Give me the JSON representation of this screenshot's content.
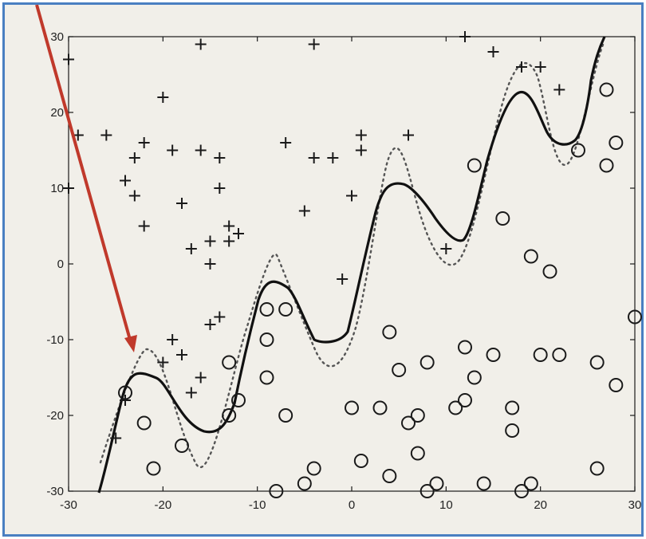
{
  "chart_data": {
    "type": "scatter",
    "title": "",
    "xlabel": "",
    "ylabel": "",
    "xlim": [
      -30,
      30
    ],
    "ylim": [
      -30,
      30
    ],
    "x_ticks": [
      -30,
      -20,
      -10,
      0,
      10,
      20,
      30
    ],
    "y_ticks": [
      -30,
      -20,
      -10,
      0,
      10,
      20,
      30
    ],
    "x_tick_labels": [
      "-30",
      "-20",
      "-10",
      "0",
      "10",
      "20",
      "30"
    ],
    "y_tick_labels": [
      "-30",
      "-20",
      "-10",
      "0",
      "10",
      "20",
      "30"
    ],
    "grid": false,
    "legend": "none",
    "colors": {
      "points": "#1a1a1a",
      "frame": "#4a7fc1",
      "arrow": "#c0392b",
      "background": "#f1efe9"
    },
    "series": [
      {
        "marker": "plus",
        "points": [
          [
            -30,
            27
          ],
          [
            -29,
            17
          ],
          [
            -30,
            10
          ],
          [
            -26,
            17
          ],
          [
            -23,
            14
          ],
          [
            -22,
            16
          ],
          [
            -24,
            11
          ],
          [
            -23,
            9
          ],
          [
            -22,
            5
          ],
          [
            -20,
            22
          ],
          [
            -19,
            15
          ],
          [
            -18,
            8
          ],
          [
            -16,
            15
          ],
          [
            -17,
            2
          ],
          [
            -15,
            3
          ],
          [
            -14,
            14
          ],
          [
            -14,
            10
          ],
          [
            -13,
            3
          ],
          [
            -13,
            5
          ],
          [
            -12,
            4
          ],
          [
            -15,
            0
          ],
          [
            -15,
            -8
          ],
          [
            -14,
            -7
          ],
          [
            -16,
            -15
          ],
          [
            -17,
            -17
          ],
          [
            -18,
            -12
          ],
          [
            -19,
            -10
          ],
          [
            -20,
            -13
          ],
          [
            -24,
            -18
          ],
          [
            -25,
            -23
          ],
          [
            -7,
            16
          ],
          [
            -5,
            7
          ],
          [
            -4,
            29
          ],
          [
            -4,
            14
          ],
          [
            -2,
            14
          ],
          [
            -1,
            -2
          ],
          [
            0,
            9
          ],
          [
            1,
            17
          ],
          [
            1,
            15
          ],
          [
            6,
            17
          ],
          [
            10,
            2
          ],
          [
            12,
            30
          ],
          [
            15,
            28
          ],
          [
            18,
            26
          ],
          [
            20,
            26
          ],
          [
            22,
            23
          ],
          [
            -16,
            29
          ]
        ]
      },
      {
        "marker": "circle",
        "points": [
          [
            -24,
            -17
          ],
          [
            -22,
            -21
          ],
          [
            -21,
            -27
          ],
          [
            -18,
            -24
          ],
          [
            -13,
            -13
          ],
          [
            -12,
            -18
          ],
          [
            -13,
            -20
          ],
          [
            -9,
            -6
          ],
          [
            -9,
            -10
          ],
          [
            -9,
            -15
          ],
          [
            -7,
            -6
          ],
          [
            -7,
            -20
          ],
          [
            -8,
            -30
          ],
          [
            -5,
            -29
          ],
          [
            -4,
            -27
          ],
          [
            0,
            -19
          ],
          [
            1,
            -26
          ],
          [
            3,
            -19
          ],
          [
            4,
            -9
          ],
          [
            4,
            -28
          ],
          [
            5,
            -14
          ],
          [
            6,
            -21
          ],
          [
            7,
            -20
          ],
          [
            7,
            -25
          ],
          [
            8,
            -13
          ],
          [
            8,
            -30
          ],
          [
            9,
            -29
          ],
          [
            11,
            -19
          ],
          [
            12,
            -11
          ],
          [
            12,
            -18
          ],
          [
            13,
            -15
          ],
          [
            13,
            13
          ],
          [
            14,
            -29
          ],
          [
            15,
            -12
          ],
          [
            16,
            6
          ],
          [
            17,
            -19
          ],
          [
            17,
            -22
          ],
          [
            18,
            -30
          ],
          [
            19,
            -29
          ],
          [
            19,
            1
          ],
          [
            20,
            -12
          ],
          [
            21,
            -1
          ],
          [
            22,
            -12
          ],
          [
            24,
            15
          ],
          [
            26,
            -13
          ],
          [
            26,
            -27
          ],
          [
            27,
            23
          ],
          [
            27,
            13
          ],
          [
            28,
            16
          ],
          [
            28,
            -16
          ],
          [
            30,
            -7
          ]
        ]
      }
    ]
  }
}
